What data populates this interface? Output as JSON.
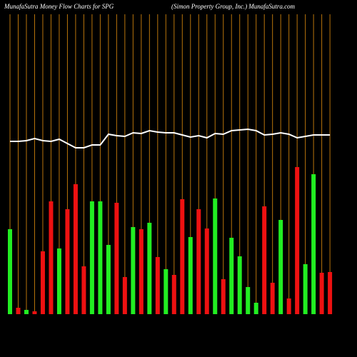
{
  "chart_data": {
    "type": "bar",
    "title": "MunafaSutra  Money Flow  Charts for SPG",
    "subtitle": "(Simon  Property  Group,  Inc.)  MunafaSutra.com",
    "ylim": [
      0,
      440
    ],
    "bars": {
      "values": [
        119,
        9,
        6,
        4,
        88,
        158,
        92,
        147,
        182,
        67,
        158,
        158,
        97,
        156,
        52,
        122,
        119,
        128,
        80,
        63,
        55,
        161,
        108,
        147,
        120,
        162,
        49,
        107,
        81,
        38,
        16,
        151,
        44,
        132,
        22,
        206,
        70,
        196,
        58,
        59
      ],
      "colors": [
        "#22ee22",
        "#ee1111",
        "#22ee22",
        "#ee1111",
        "#ee1111",
        "#ee1111",
        "#22ee22",
        "#ee1111",
        "#ee1111",
        "#ee1111",
        "#22ee22",
        "#22ee22",
        "#22ee22",
        "#ee1111",
        "#ee1111",
        "#22ee22",
        "#ee1111",
        "#22ee22",
        "#ee1111",
        "#22ee22",
        "#ee1111",
        "#ee1111",
        "#22ee22",
        "#ee1111",
        "#ee1111",
        "#22ee22",
        "#ee1111",
        "#22ee22",
        "#22ee22",
        "#22ee22",
        "#22ee22",
        "#ee1111",
        "#ee1111",
        "#22ee22",
        "#ee1111",
        "#ee1111",
        "#22ee22",
        "#22ee22",
        "#ee1111",
        "#ee1111"
      ]
    },
    "line": {
      "color": "#ffffff",
      "values": [
        242,
        242,
        243,
        246,
        243,
        242,
        245,
        239,
        233,
        233,
        237,
        237,
        252,
        250,
        249,
        254,
        253,
        257,
        255,
        254,
        254,
        251,
        248,
        250,
        247,
        253,
        252,
        257,
        258,
        259,
        257,
        251,
        252,
        254,
        252,
        247,
        249,
        251,
        251,
        251
      ]
    },
    "gridline_color": "#b8740b"
  }
}
